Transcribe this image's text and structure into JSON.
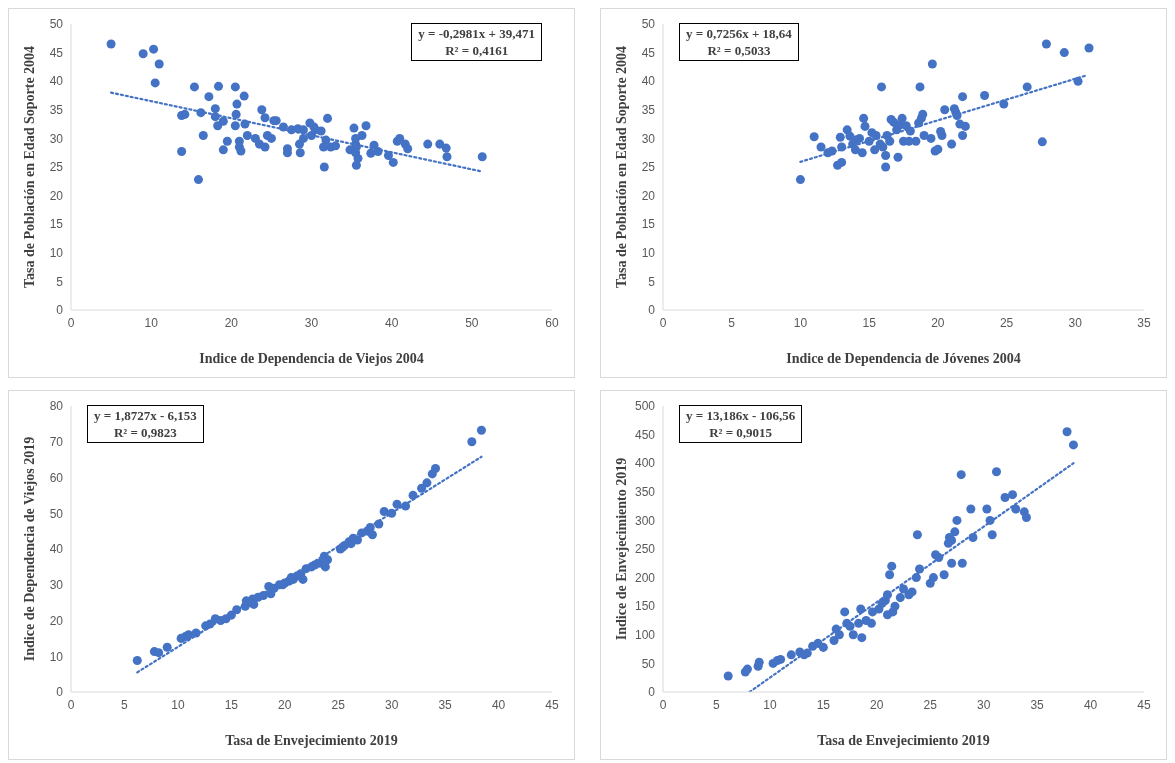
{
  "chart_data": [
    {
      "type": "scatter",
      "xlabel": "Indice de Dependencia de Viejos 2004",
      "ylabel": "Tasa de Población en Edad Soporte 2004",
      "marker": "circle",
      "annotations": [
        "y = -0,2981x + 39,471",
        "R² = 0,4161"
      ],
      "xlim": [
        0,
        60
      ],
      "xticks": [
        0,
        10,
        20,
        30,
        40,
        50,
        60
      ],
      "ylim": [
        0,
        50
      ],
      "yticks": [
        0,
        5,
        10,
        15,
        20,
        25,
        30,
        35,
        40,
        45,
        50
      ],
      "series": [
        {
          "color": "#4472c4",
          "x": [
            5,
            9,
            10.3,
            11,
            10.5,
            13.8,
            14.2,
            13.8,
            15.4,
            16.2,
            16.5,
            15.9,
            17.2,
            18.4,
            18,
            18,
            18.3,
            19,
            19,
            20.5,
            20.7,
            20.6,
            20.5,
            21,
            21,
            21.2,
            21.6,
            21.7,
            23,
            23.5,
            23.8,
            24.2,
            24.5,
            24.2,
            25,
            25.6,
            25.3,
            26.5,
            27,
            27,
            28.3,
            28.5,
            28.6,
            29,
            29.8,
            30.3,
            30,
            30.5,
            31.2,
            31.5,
            31.6,
            31.8,
            32,
            32.4,
            33,
            34.8,
            35.3,
            35.5,
            35.5,
            35.5,
            35.6,
            35.8,
            36.3,
            36.8,
            37.4,
            37.8,
            38.3,
            39.6,
            40.2,
            40.7,
            41,
            41.7,
            42,
            44.5,
            46,
            46.8,
            46.9,
            51.3,
            35.6,
            22,
            19.5,
            27.5,
            29
          ],
          "values": [
            46.5,
            44.8,
            45.6,
            43,
            39.7,
            34,
            34.2,
            27.7,
            39,
            34.5,
            30.5,
            22.8,
            37.3,
            39.1,
            33.8,
            35.2,
            32.2,
            33,
            28,
            39,
            36,
            34.2,
            32.2,
            29.5,
            28.5,
            27.8,
            37.4,
            32.5,
            30,
            29,
            35,
            33.6,
            30.5,
            28.5,
            30,
            33.1,
            33.1,
            32,
            27.5,
            28.2,
            31.7,
            29,
            27.5,
            30,
            32.7,
            32,
            30.5,
            31.5,
            31.3,
            28.5,
            25,
            29.7,
            33.5,
            28.5,
            28.7,
            28,
            31.8,
            30,
            29,
            27.5,
            25.3,
            26.5,
            30.5,
            32.2,
            27.4,
            28.8,
            27.7,
            27,
            25.8,
            29.5,
            30,
            29,
            28.2,
            29,
            29,
            28.3,
            26.8,
            26.8,
            28.5,
            30.5,
            29.5,
            31.5,
            31.5
          ]
        },
        {
          "type": "line",
          "color": "#4472c4",
          "line_style": "dotted",
          "marker": "none",
          "x": [
            5,
            51.3
          ],
          "values": [
            38,
            24.2
          ]
        }
      ]
    },
    {
      "type": "scatter",
      "xlabel": "Indice de Dependencia de Jóvenes 2004",
      "ylabel": "Tasa de Población en Edad Soporte 2004",
      "marker": "circle",
      "annotations": [
        "y = 0,7256x + 18,64",
        "R² = 0,5033"
      ],
      "xlim": [
        0,
        35
      ],
      "xticks": [
        0,
        5,
        10,
        15,
        20,
        25,
        30,
        35
      ],
      "ylim": [
        0,
        50
      ],
      "yticks": [
        0,
        5,
        10,
        15,
        20,
        25,
        30,
        35,
        40,
        45,
        50
      ],
      "series": [
        {
          "color": "#4472c4",
          "x": [
            10,
            11,
            11.5,
            12,
            12.3,
            12.7,
            13,
            12.9,
            13,
            13.4,
            13.8,
            14,
            14.3,
            14.5,
            14.6,
            14.7,
            15,
            15.2,
            15.4,
            15.5,
            15.9,
            16,
            16.2,
            16.2,
            16.3,
            16.5,
            16.6,
            17,
            17.1,
            17.2,
            17.4,
            17.5,
            17.7,
            18,
            18.4,
            18.6,
            18.7,
            18.9,
            18.8,
            19,
            19.5,
            19.6,
            19.8,
            20,
            20.2,
            20.3,
            20.5,
            21,
            21.2,
            21.3,
            21.4,
            21.6,
            21.8,
            21.8,
            22,
            23.4,
            24.8,
            26.5,
            27.6,
            27.9,
            29.2,
            30.2,
            31,
            14,
            15.8,
            17.9,
            13.6,
            16.8
          ],
          "values": [
            22.8,
            30.3,
            28.5,
            27.5,
            27.8,
            25.3,
            25.8,
            30.2,
            28.5,
            31.5,
            29,
            28,
            30,
            27.5,
            33.5,
            32.1,
            29.5,
            31,
            28,
            30.5,
            39,
            28.5,
            27,
            25,
            30.5,
            29.5,
            33.3,
            31.5,
            26.7,
            32.3,
            33.5,
            29.5,
            32.2,
            31.3,
            29.5,
            32.7,
            39,
            34.2,
            33.5,
            30.5,
            30,
            43,
            27.8,
            28.1,
            31.2,
            30.5,
            35,
            29,
            35.2,
            34.6,
            34,
            32.5,
            30.5,
            37.3,
            32.1,
            37.5,
            36,
            39,
            29.4,
            46.5,
            45,
            40,
            45.8,
            29.7,
            29,
            29.5,
            30.4,
            32.8
          ]
        },
        {
          "type": "line",
          "color": "#4472c4",
          "line_style": "dotted",
          "marker": "none",
          "x": [
            10,
            30.8
          ],
          "values": [
            25.9,
            41
          ]
        }
      ]
    },
    {
      "type": "scatter",
      "xlabel": "Tasa de Envejecimiento 2019",
      "ylabel": "Indice de Dependencia de Viejos 2019",
      "marker": "circle",
      "annotations": [
        "y = 1,8727x - 6,153",
        "R² = 0,9823"
      ],
      "xlim": [
        0,
        45
      ],
      "xticks": [
        0,
        5,
        10,
        15,
        20,
        25,
        30,
        35,
        40,
        45
      ],
      "ylim": [
        0,
        80
      ],
      "yticks": [
        0,
        10,
        20,
        30,
        40,
        50,
        60,
        70,
        80
      ],
      "series": [
        {
          "color": "#4472c4",
          "x": [
            6.2,
            7.8,
            8.2,
            9,
            10.3,
            10.7,
            11,
            11.7,
            12.6,
            13,
            13.5,
            14,
            14.5,
            15,
            15.5,
            16.3,
            16.4,
            17,
            17.1,
            17.5,
            18,
            18.5,
            18.7,
            19,
            19.5,
            20,
            20.4,
            20.8,
            21.2,
            21.5,
            21.7,
            22,
            22.8,
            23.3,
            23.7,
            23.8,
            24,
            25.2,
            25.6,
            26,
            26.4,
            26.8,
            27.2,
            27.7,
            28,
            28.2,
            28.8,
            29.3,
            30,
            30.5,
            31.3,
            32,
            32.8,
            33.3,
            33.8,
            34.1,
            37.5,
            38.4,
            20.6,
            25.4,
            26.2,
            22.5,
            16.8,
            19.8
          ],
          "values": [
            8.8,
            11.3,
            11,
            12.5,
            15,
            15.5,
            16,
            16.5,
            18.5,
            19,
            20.5,
            20,
            20.5,
            21.5,
            23,
            24,
            25.5,
            26,
            24.5,
            26.5,
            27,
            29.5,
            27.5,
            29,
            30,
            30.5,
            31,
            31.5,
            32.5,
            33,
            31.5,
            34.5,
            35.5,
            36,
            38,
            35,
            37,
            40,
            41,
            42,
            43,
            42.5,
            44.5,
            45,
            46,
            44,
            47,
            50.5,
            50,
            52.5,
            52,
            55,
            57,
            58.5,
            61,
            62.5,
            70,
            73.2,
            32,
            40.5,
            41.5,
            35,
            25,
            30
          ]
        },
        {
          "type": "line",
          "color": "#4472c4",
          "line_style": "dotted",
          "marker": "none",
          "x": [
            6.2,
            38.4
          ],
          "values": [
            5.5,
            65.8
          ]
        }
      ]
    },
    {
      "type": "scatter",
      "xlabel": "Tasa de Envejecimiento 2019",
      "ylabel": "Indice de Envejecimiento 2019",
      "marker": "circle",
      "annotations": [
        "y = 13,186x - 106,56",
        "R² = 0,9015"
      ],
      "xlim": [
        0,
        45
      ],
      "xticks": [
        0,
        5,
        10,
        15,
        20,
        25,
        30,
        35,
        40,
        45
      ],
      "ylim": [
        0,
        500
      ],
      "yticks": [
        0,
        50,
        100,
        150,
        200,
        250,
        300,
        350,
        400,
        450,
        500
      ],
      "series": [
        {
          "color": "#4472c4",
          "x": [
            6.1,
            7.7,
            7.9,
            8.9,
            9,
            10.3,
            10.7,
            11,
            12,
            12.8,
            13.2,
            13.5,
            14,
            14.5,
            15,
            16,
            16.2,
            16.5,
            17,
            17.2,
            17.5,
            17.8,
            18.3,
            18.5,
            18.6,
            19,
            19.5,
            19.6,
            20.2,
            20.8,
            21,
            21,
            21.2,
            21.4,
            21.5,
            21.7,
            22.2,
            23,
            23.3,
            23.7,
            23.8,
            24,
            25,
            25.3,
            25.5,
            25.8,
            26.3,
            26.7,
            27,
            27,
            27.3,
            27.5,
            27.9,
            28,
            28.8,
            29,
            30.3,
            30.6,
            30.8,
            31.2,
            32,
            32.7,
            33,
            33.8,
            34,
            37.8,
            38.4,
            22.5,
            26.8,
            20.5
          ],
          "values": [
            28,
            35,
            40,
            45,
            52,
            50,
            55,
            57,
            65,
            70,
            65,
            68,
            80,
            85,
            78,
            90,
            110,
            100,
            140,
            120,
            115,
            100,
            120,
            145,
            95,
            125,
            120,
            140,
            145,
            160,
            170,
            135,
            205,
            220,
            140,
            150,
            165,
            170,
            175,
            200,
            275,
            215,
            190,
            200,
            240,
            235,
            205,
            260,
            265,
            225,
            280,
            300,
            380,
            225,
            320,
            270,
            320,
            300,
            275,
            385,
            340,
            345,
            320,
            315,
            305,
            455,
            432,
            180,
            270,
            155
          ]
        },
        {
          "type": "line",
          "color": "#4472c4",
          "line_style": "dotted",
          "marker": "none",
          "x": [
            8.1,
            38.4
          ],
          "values": [
            0,
            400
          ]
        }
      ]
    }
  ]
}
